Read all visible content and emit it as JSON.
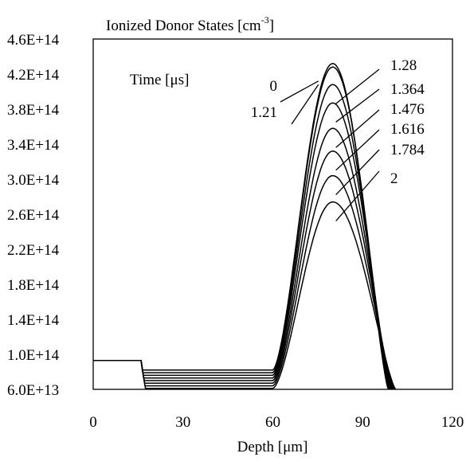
{
  "chart_data": {
    "type": "line",
    "title": "Ionized Donor States [cm",
    "title_sup": "-3",
    "title_suffix": "]",
    "xlabel": "Depth [μm]",
    "ylabel": "",
    "xlim": [
      0,
      120
    ],
    "ylim": [
      60000000000000.0,
      460000000000000.0
    ],
    "x_ticks": [
      0,
      30,
      60,
      90,
      120
    ],
    "x_tick_labels": [
      "0",
      "30",
      "60",
      "90",
      "120"
    ],
    "y_ticks": [
      60000000000000.0,
      100000000000000.0,
      140000000000000.0,
      180000000000000.0,
      220000000000000.0,
      260000000000000.0,
      300000000000000.0,
      340000000000000.0,
      380000000000000.0,
      420000000000000.0,
      460000000000000.0
    ],
    "y_tick_labels": [
      "6.0E+13",
      "1.0E+14",
      "1.4E+14",
      "1.8E+14",
      "2.2E+14",
      "2.6E+14",
      "3.0E+14",
      "3.4E+14",
      "3.8E+14",
      "4.2E+14",
      "4.6E+14"
    ],
    "grid": false,
    "legend_title": "Time [μs]",
    "line_color": "#000000",
    "series": [
      {
        "name": "0",
        "plateau": 93000000000000.0,
        "shelf": 82000000000000.0,
        "peak": 432000000000000.0
      },
      {
        "name": "1.21",
        "plateau": 93000000000000.0,
        "shelf": 79000000000000.0,
        "peak": 428000000000000.0
      },
      {
        "name": "1.28",
        "plateau": 93000000000000.0,
        "shelf": 76000000000000.0,
        "peak": 408000000000000.0
      },
      {
        "name": "1.364",
        "plateau": 93000000000000.0,
        "shelf": 73000000000000.0,
        "peak": 387000000000000.0
      },
      {
        "name": "1.476",
        "plateau": 93000000000000.0,
        "shelf": 70000000000000.0,
        "peak": 358000000000000.0
      },
      {
        "name": "1.616",
        "plateau": 93000000000000.0,
        "shelf": 67000000000000.0,
        "peak": 332000000000000.0
      },
      {
        "name": "1.784",
        "plateau": 93000000000000.0,
        "shelf": 64000000000000.0,
        "peak": 304000000000000.0
      },
      {
        "name": "2",
        "plateau": 93000000000000.0,
        "shelf": 61000000000000.0,
        "peak": 274000000000000.0
      }
    ],
    "profile": {
      "plateau_end_x": 16,
      "shelf_end_x": 60,
      "peak_x": 80,
      "end_x": 101
    }
  }
}
